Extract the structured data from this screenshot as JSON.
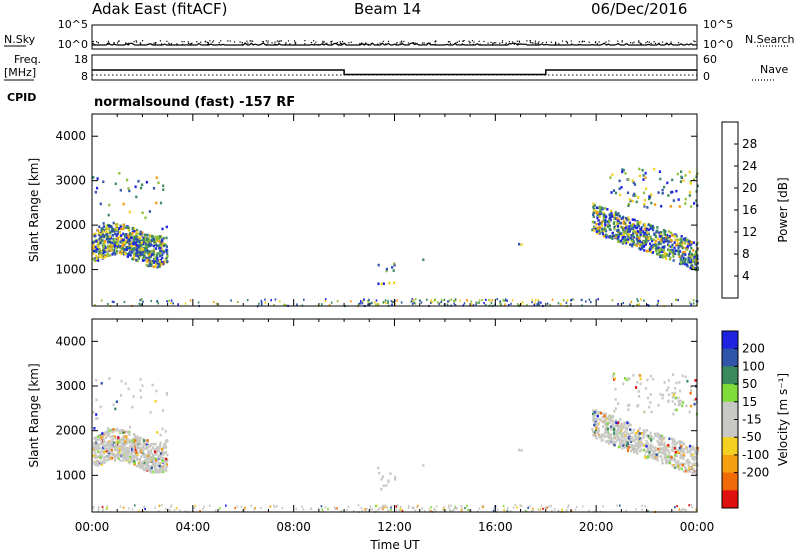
{
  "header": {
    "station": "Adak East (fitACF)",
    "beam": "Beam 14",
    "date": "06/Dec/2016"
  },
  "mode_label": "normalsound (fast) -157 RF",
  "colors": {
    "power": [
      "#1f23e0",
      "#2f55a8",
      "#3a8a5e",
      "#8fbf3a",
      "#f4d020",
      "#f59a10",
      "#f06a08",
      "#e01010"
    ],
    "velocity_pos": [
      "#1f23e0",
      "#2f55a8",
      "#3a8a5e",
      "#7fdc3a"
    ],
    "velocity_gray": "#c8c8c4",
    "velocity_neg": [
      "#f4d020",
      "#f5a010",
      "#f06a08",
      "#e01010"
    ]
  },
  "chart_data": [
    {
      "type": "line",
      "panel": "noise",
      "y_left_label": "N.Sky",
      "y_right_label": "N.Search",
      "left_ticks": [
        "10^5",
        "10^0"
      ],
      "right_ticks": [
        "10^5",
        "10^0"
      ],
      "series": [
        {
          "name": "N.Sky",
          "note": "solid",
          "level": 0.1
        },
        {
          "name": "N.Search",
          "note": "dotted",
          "level": 0.05
        }
      ]
    },
    {
      "type": "line",
      "panel": "frequency",
      "y_left_label": "Freq. [MHz]",
      "y_right_label": "Nave",
      "left_ticks": [
        18,
        8
      ],
      "right_ticks": [
        60,
        0
      ],
      "series": [
        {
          "name": "Freq.",
          "x": [
            "00:00",
            "10:00",
            "10:00",
            "18:00",
            "18:00",
            "24:00"
          ],
          "y": [
            12,
            12,
            10.2,
            10.2,
            12,
            12
          ]
        },
        {
          "name": "Nave",
          "y_const": 12
        }
      ]
    },
    {
      "type": "heatmap",
      "panel": "power",
      "ylabel": "Slant Range [km]",
      "yticks": [
        1000,
        2000,
        3000,
        4000
      ],
      "ylim": [
        180,
        4500
      ],
      "colorbar_label": "Power [dB]",
      "colorbar_ticks": [
        4,
        8,
        12,
        16,
        20,
        24,
        28
      ],
      "colorbar_range": [
        0,
        32
      ]
    },
    {
      "type": "heatmap",
      "panel": "velocity",
      "ylabel": "Slant Range [km]",
      "yticks": [
        1000,
        2000,
        3000,
        4000
      ],
      "ylim": [
        180,
        4500
      ],
      "colorbar_label": "Velocity [m s⁻¹]",
      "colorbar_ticks": [
        "200",
        "100",
        "50",
        "15",
        "-15",
        "-50",
        "-100",
        "-200"
      ],
      "xlabel": "Time UT",
      "xticks": [
        "00:00",
        "04:00",
        "08:00",
        "12:00",
        "16:00",
        "20:00",
        "00:00"
      ]
    }
  ]
}
